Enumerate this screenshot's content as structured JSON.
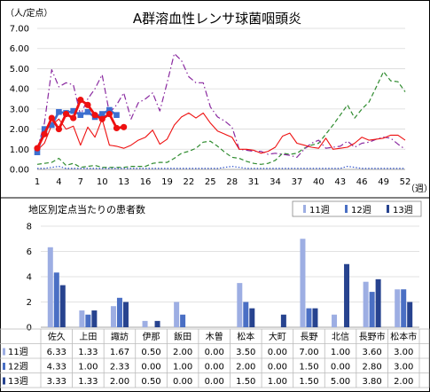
{
  "chart_data": [
    {
      "type": "line",
      "title": "A群溶血性レンサ球菌咽頭炎",
      "ylabel": "（人/定点）",
      "xlabel": "（週）",
      "ylim": [
        0,
        7
      ],
      "yticks": [
        "0.00",
        "1.00",
        "2.00",
        "3.00",
        "4.00",
        "5.00",
        "6.00",
        "7.00"
      ],
      "xticks": [
        "1",
        "4",
        "7",
        "10",
        "13",
        "16",
        "19",
        "22",
        "25",
        "28",
        "31",
        "34",
        "37",
        "40",
        "43",
        "46",
        "49",
        "52"
      ],
      "grid": true,
      "colors": {
        "current_year": "#ee1111",
        "current_year_marker": "#3d6fcf",
        "red_line": "#ee1111",
        "purple_dashdot": "#8a2aa0",
        "green_dashed": "#2e8b2e",
        "blue_dotted": "#3355cc"
      },
      "series": [
        {
          "style": "current-year",
          "x": [
            1,
            2,
            3,
            4,
            5,
            6,
            7,
            8,
            9,
            10,
            11,
            12,
            13
          ],
          "values": [
            1.05,
            1.75,
            2.55,
            2.0,
            2.75,
            2.55,
            3.45,
            3.2,
            2.7,
            2.5,
            2.75,
            2.05,
            2.1
          ]
        },
        {
          "style": "blue-square-markers",
          "x": [
            1,
            2,
            3,
            4,
            5,
            6,
            7,
            8,
            9,
            10,
            11,
            12
          ],
          "values": [
            0.85,
            2.0,
            2.2,
            2.85,
            2.8,
            2.9,
            2.7,
            2.85,
            2.6,
            2.75,
            2.95,
            2.7
          ]
        },
        {
          "style": "red-solid",
          "values": [
            0.95,
            1.3,
            2.2,
            2.5,
            2.0,
            2.15,
            1.2,
            2.1,
            1.6,
            2.5,
            1.2,
            1.15,
            1.05,
            1.2,
            1.45,
            1.6,
            1.95,
            1.25,
            1.5,
            2.2,
            2.6,
            2.8,
            2.55,
            2.8,
            2.3,
            1.9,
            1.75,
            1.6,
            1.0,
            1.0,
            0.95,
            0.8,
            0.9,
            1.1,
            1.65,
            1.8,
            1.3,
            1.2,
            1.1,
            1.05,
            1.55,
            1.0,
            1.05,
            1.1,
            1.3,
            1.6,
            1.45,
            1.5,
            1.55,
            1.7,
            1.7,
            1.45
          ]
        },
        {
          "style": "purple-dashdot",
          "values": [
            1.0,
            2.3,
            4.95,
            4.1,
            4.3,
            4.2,
            2.7,
            3.5,
            4.0,
            4.7,
            2.8,
            3.2,
            3.8,
            2.5,
            3.3,
            3.5,
            3.8,
            2.9,
            4.3,
            5.75,
            5.4,
            4.6,
            4.3,
            4.3,
            3.1,
            2.6,
            2.4,
            2.1,
            1.0,
            0.95,
            0.9,
            0.9,
            0.75,
            0.8,
            0.75,
            0.7,
            0.6,
            1.0,
            1.3,
            1.45,
            1.05,
            1.1,
            1.15,
            1.4,
            1.1,
            1.3,
            1.35,
            1.5,
            1.6,
            1.55,
            1.25,
            1.0
          ]
        },
        {
          "style": "green-dashed",
          "values": [
            0.25,
            0.3,
            0.35,
            0.55,
            0.2,
            0.3,
            0.1,
            0.15,
            0.2,
            0.1,
            0.1,
            0.1,
            0.1,
            0.15,
            0.15,
            0.15,
            0.3,
            0.35,
            0.35,
            0.55,
            0.8,
            0.9,
            1.05,
            1.35,
            1.4,
            1.15,
            0.85,
            0.6,
            0.55,
            0.4,
            0.3,
            0.25,
            0.3,
            0.45,
            0.8,
            0.75,
            0.8,
            1.05,
            1.2,
            1.3,
            1.75,
            2.2,
            2.7,
            3.2,
            2.55,
            3.0,
            3.35,
            4.1,
            4.85,
            4.4,
            4.35,
            3.85
          ]
        },
        {
          "style": "blue-dotted",
          "values": [
            0.05,
            0.05,
            0.1,
            0.15,
            0.05,
            0.05,
            0.05,
            0.05,
            0.05,
            0.05,
            0.05,
            0.05,
            0.05,
            0.05,
            0.05,
            0.05,
            0.05,
            0.05,
            0.05,
            0.05,
            0.05,
            0.05,
            0.05,
            0.05,
            0.05,
            0.05,
            0.1,
            0.15,
            0.1,
            0.05,
            0.05,
            0.05,
            0.05,
            0.05,
            0.05,
            0.05,
            0.05,
            0.05,
            0.05,
            0.05,
            0.05,
            0.05,
            0.05,
            0.15,
            0.1,
            0.05,
            0.05,
            0.05,
            0.05,
            0.05,
            0.05,
            0.05
          ]
        }
      ]
    },
    {
      "type": "bar",
      "title": "地区別定点当たりの患者数",
      "ylim": [
        0,
        8
      ],
      "yticks": [
        "0",
        "2",
        "4",
        "6",
        "8"
      ],
      "grid": true,
      "legend_position": "top-right",
      "categories": [
        "佐久",
        "上田",
        "諏訪",
        "伊那",
        "飯田",
        "木曽",
        "松本",
        "大町",
        "長野",
        "北信",
        "長野市",
        "松本市"
      ],
      "series": [
        {
          "name": "11週",
          "color": "#9daee3",
          "labels": [
            "6.33",
            "1.33",
            "1.67",
            "0.50",
            "2.00",
            "0.00",
            "3.50",
            "0.00",
            "7.00",
            "1.00",
            "3.60",
            "3.00"
          ],
          "values": [
            6.33,
            1.33,
            1.67,
            0.5,
            2.0,
            0.0,
            3.5,
            0.0,
            7.0,
            1.0,
            3.6,
            3.0
          ]
        },
        {
          "name": "12週",
          "color": "#4a6fc4",
          "labels": [
            "4.33",
            "1.00",
            "2.33",
            "0.00",
            "1.00",
            "0.00",
            "2.00",
            "0.00",
            "1.50",
            "0.00",
            "2.80",
            "3.00"
          ],
          "values": [
            4.33,
            1.0,
            2.33,
            0.0,
            1.0,
            0.0,
            2.0,
            0.0,
            1.5,
            0.0,
            2.8,
            3.0
          ]
        },
        {
          "name": "13週",
          "color": "#27438f",
          "labels": [
            "3.33",
            "1.33",
            "2.00",
            "0.50",
            "0.00",
            "0.00",
            "1.50",
            "1.00",
            "1.50",
            "5.00",
            "3.80",
            "2.00"
          ],
          "values": [
            3.33,
            1.33,
            2.0,
            0.5,
            0.0,
            0.0,
            1.5,
            1.0,
            1.5,
            5.0,
            3.8,
            2.0
          ]
        }
      ]
    }
  ]
}
